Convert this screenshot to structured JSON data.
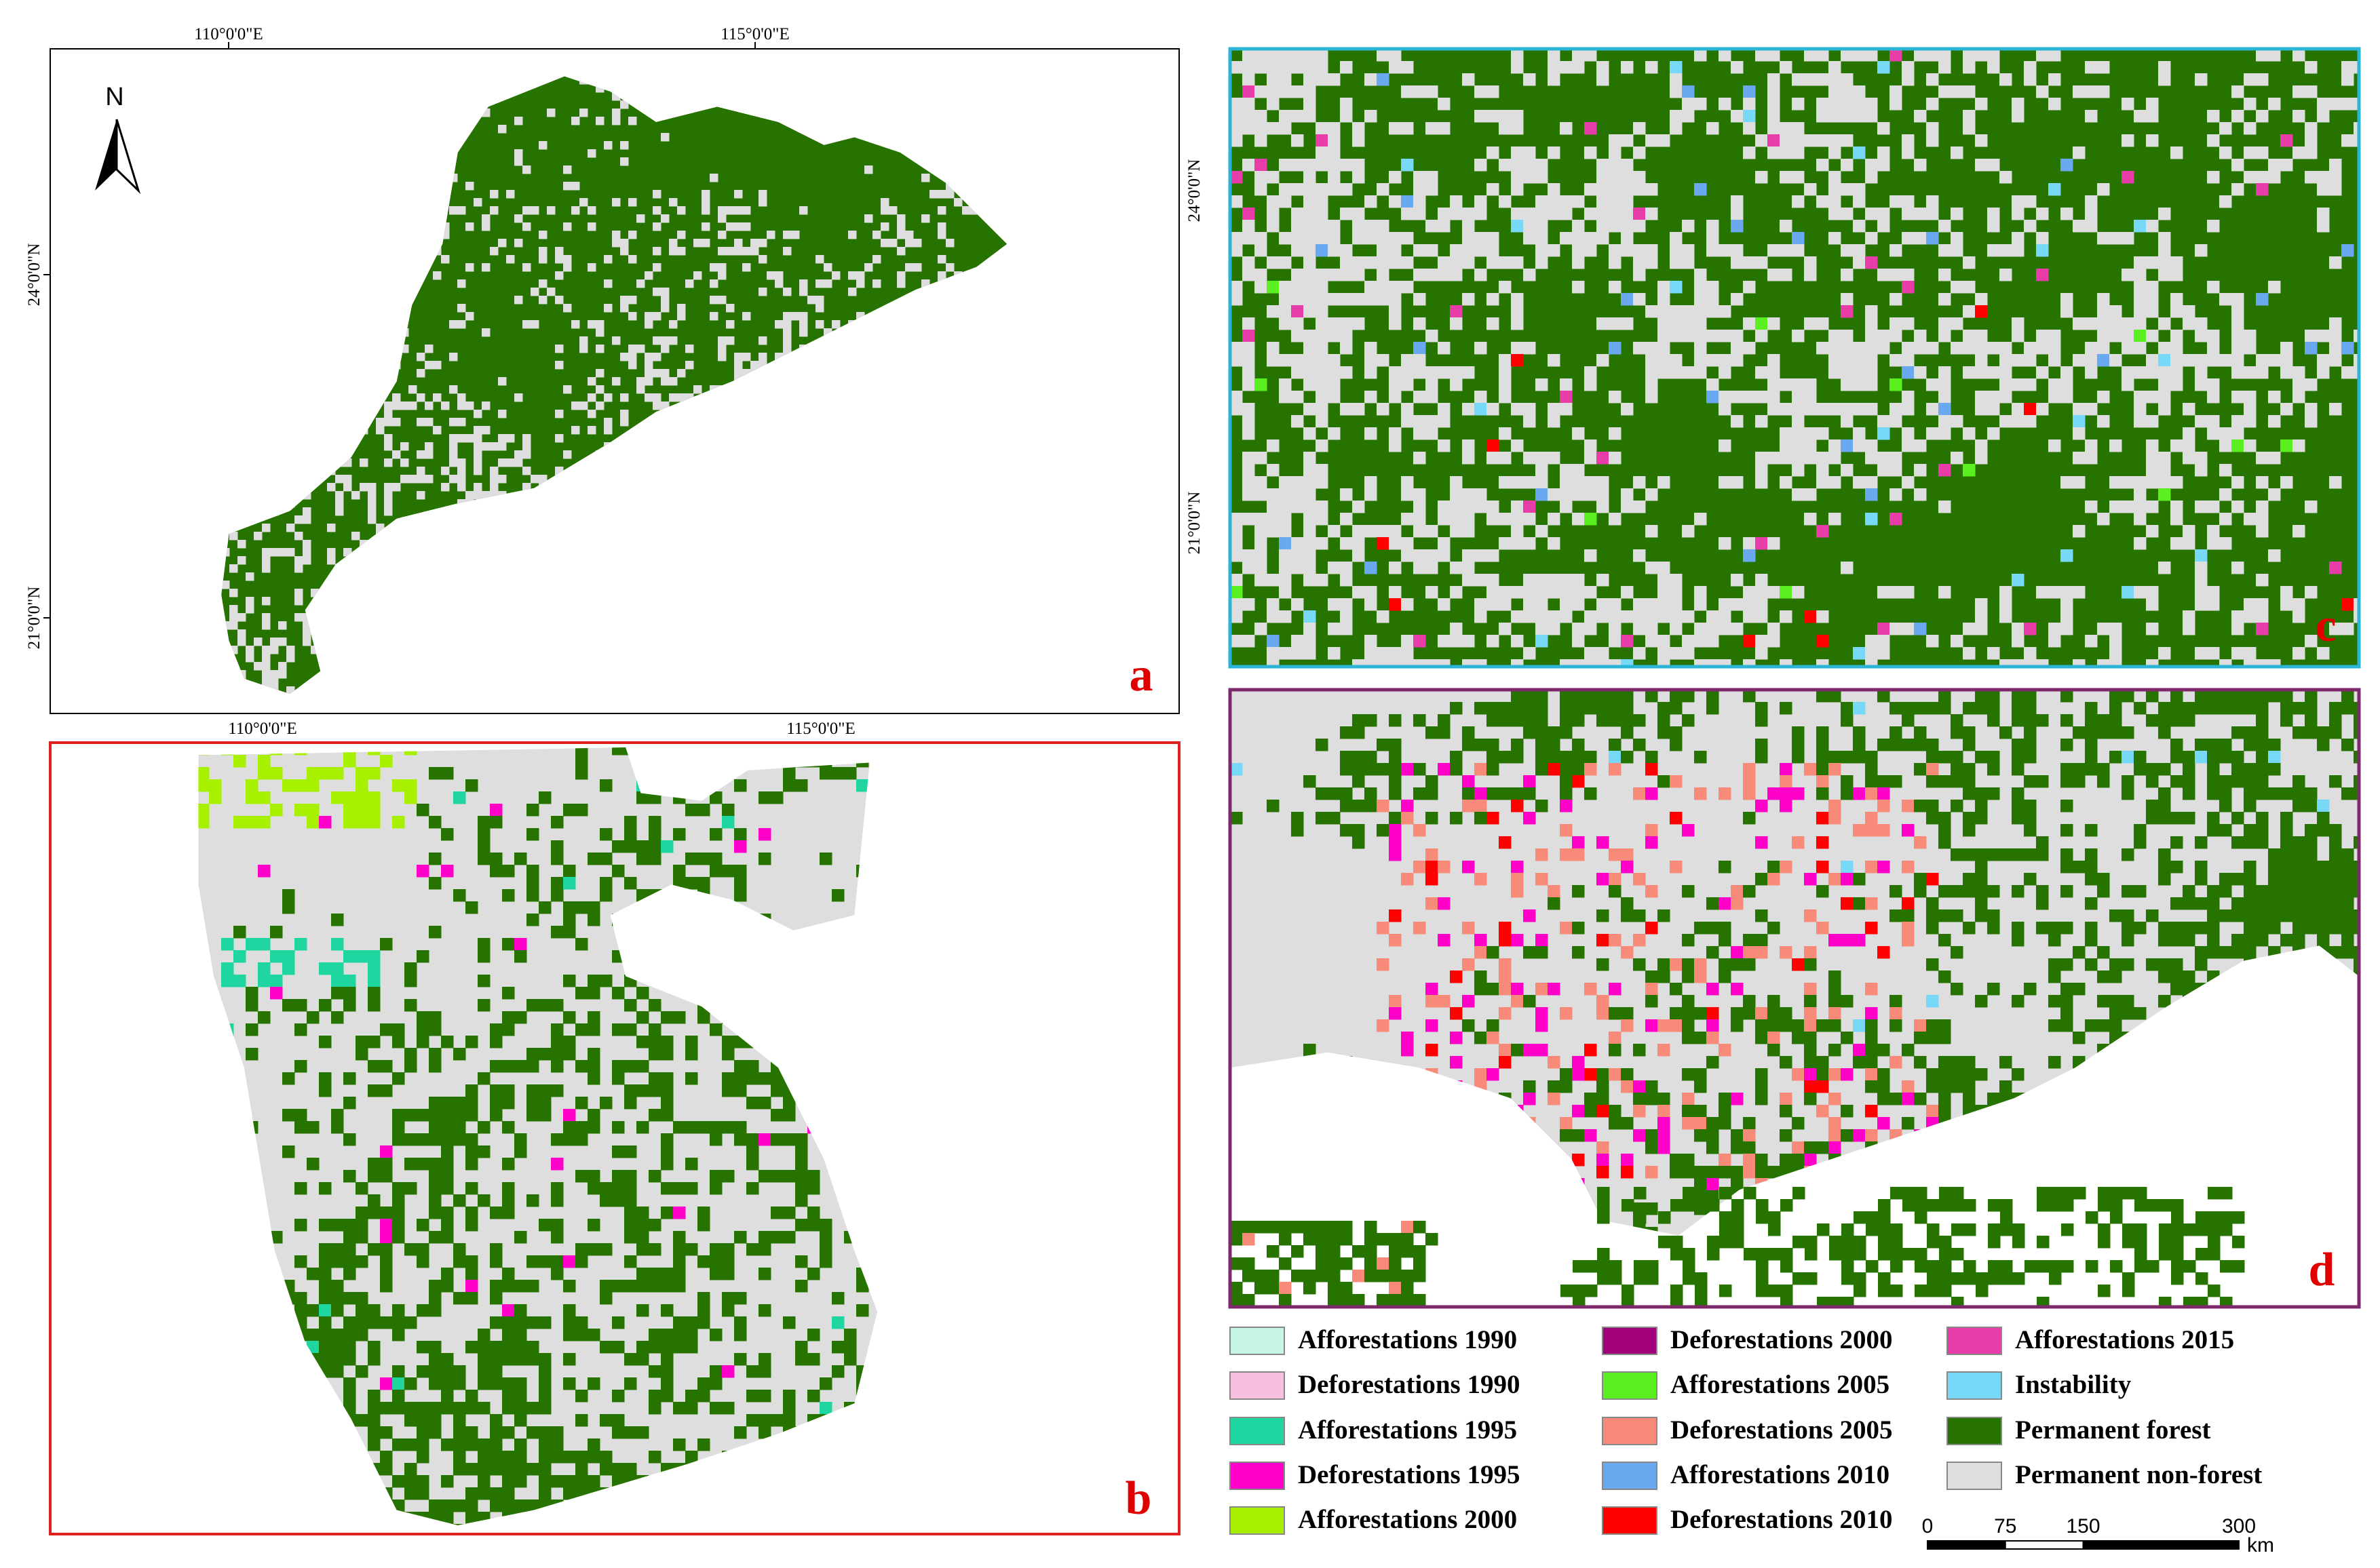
{
  "panels": {
    "a": {
      "label": "a",
      "north": "N",
      "top_ticks": [
        "110°0'0\"E",
        "115°0'0\"E"
      ],
      "left_ticks": [
        "24°0'0\"N",
        "21°0'0\"N"
      ],
      "bottom_ticks": [
        "110°0'0\"E",
        "115°0'0\"E"
      ]
    },
    "b": {
      "label": "b"
    },
    "c": {
      "label": "c",
      "left_ticks": [
        "24°0'0\"N",
        "21°0'0\"N"
      ]
    },
    "d": {
      "label": "d"
    }
  },
  "legend": {
    "items": [
      {
        "label": "Afforestations 1990",
        "color": "#c6f5e6"
      },
      {
        "label": "Deforestations 1990",
        "color": "#f8bfe0"
      },
      {
        "label": "Afforestations 1995",
        "color": "#1fd6a0"
      },
      {
        "label": "Deforestations 1995",
        "color": "#ff00c8"
      },
      {
        "label": "Afforestations 2000",
        "color": "#a6f000"
      },
      {
        "label": "Deforestations 2000",
        "color": "#a0007a"
      },
      {
        "label": "Afforestations 2005",
        "color": "#5af020"
      },
      {
        "label": "Deforestations 2005",
        "color": "#f88a7a"
      },
      {
        "label": "Afforestations 2010",
        "color": "#6aa8f0"
      },
      {
        "label": "Deforestations 2010",
        "color": "#ff0000"
      },
      {
        "label": "Afforestations 2015",
        "color": "#e83ca8"
      },
      {
        "label": "Instability",
        "color": "#78d8f8"
      },
      {
        "label": "Permanent forest",
        "color": "#267300"
      },
      {
        "label": "Permanent non-forest",
        "color": "#dedede"
      }
    ]
  },
  "scale_bar": {
    "ticks": [
      0,
      75,
      150,
      300
    ],
    "unit": "km"
  }
}
